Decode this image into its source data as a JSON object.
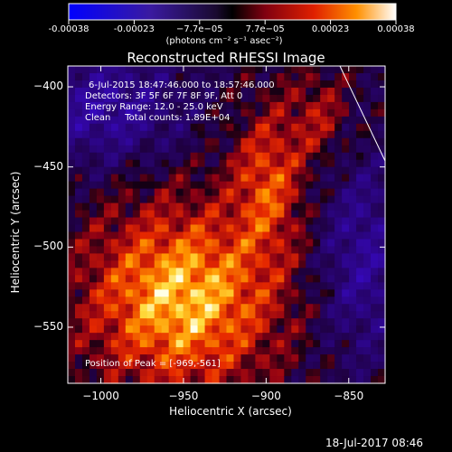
{
  "colorbar": {
    "ticks": [
      "-0.00038",
      "-0.00023",
      "−7.7e−05",
      "7.7e−05",
      "0.00023",
      "0.00038"
    ],
    "unit": "(photons cm⁻² s⁻¹ asec⁻²)"
  },
  "chart_data": {
    "type": "heatmap",
    "title": "Reconstructed RHESSI Image",
    "xlabel": "Heliocentric X (arcsec)",
    "ylabel": "Heliocentric Y (arcsec)",
    "xlim": [
      -1020,
      -828
    ],
    "ylim": [
      -585,
      -387
    ],
    "x_ticks": [
      -1000,
      -950,
      -900,
      -850
    ],
    "y_ticks": [
      -400,
      -450,
      -500,
      -550
    ],
    "x_tick_labels": [
      "−1000",
      "−950",
      "−900",
      "−850"
    ],
    "y_tick_labels": [
      "−400",
      "−450",
      "−500",
      "−550"
    ],
    "colorbar_range": [
      -0.00038,
      0.00038
    ],
    "peak_position": [
      -969,
      -561
    ],
    "annotations": [
      "6-Jul-2015 18:47:46.000 to 18:57:46.000",
      "Detectors: 3F 5F 6F 7F 8F 9F, Att 0",
      "Energy Range: 12.0 - 25.0 keV",
      "Clean     Total counts: 1.89E+04"
    ],
    "peak_label": "Position of Peak = [-969,-561]"
  },
  "datestamp": "18-Jul-2017 08:46",
  "colors": {
    "background": "#000000",
    "text": "#ffffff"
  }
}
